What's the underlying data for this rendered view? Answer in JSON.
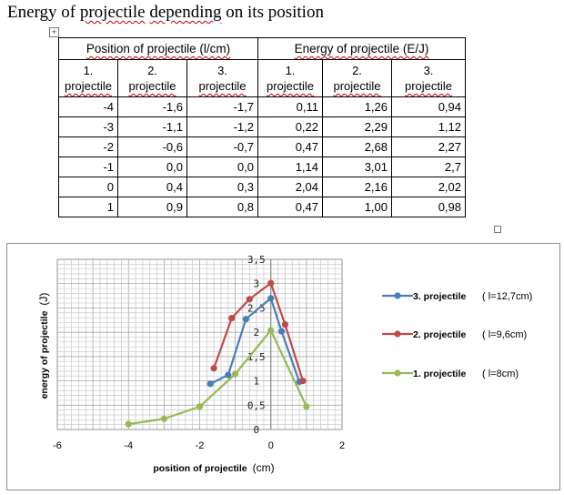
{
  "document": {
    "title_words": [
      "Energy",
      "of",
      "projectile",
      "depending",
      "on",
      "its",
      "position"
    ]
  },
  "table": {
    "group_headers": [
      "Position of projectile (l/cm)",
      "Energy of projectile (E/J)"
    ],
    "sub_headers": [
      {
        "num": "1.",
        "label": "projectile"
      },
      {
        "num": "2.",
        "label": "projectile"
      },
      {
        "num": "3.",
        "label": "projectile"
      },
      {
        "num": "1.",
        "label": "projectile"
      },
      {
        "num": "2.",
        "label": "projectile"
      },
      {
        "num": "3.",
        "label": "projectile"
      }
    ],
    "rows": [
      [
        "-4",
        "-1,6",
        "-1,7",
        "0,11",
        "1,26",
        "0,94"
      ],
      [
        "-3",
        "-1,1",
        "-1,2",
        "0,22",
        "2,29",
        "1,12"
      ],
      [
        "-2",
        "-0,6",
        "-0,7",
        "0,47",
        "2,68",
        "2,27"
      ],
      [
        "-1",
        "0,0",
        "0,0",
        "1,14",
        "3,01",
        "2,7"
      ],
      [
        "0",
        "0,4",
        "0,3",
        "2,04",
        "2,16",
        "2,02"
      ],
      [
        "1",
        "0,9",
        "0,8",
        "0,47",
        "1,00",
        "0,98"
      ]
    ]
  },
  "chart_data": {
    "type": "line",
    "xlabel": "position of projectile",
    "xlabel_unit": "(cm)",
    "ylabel": "energy of projectile",
    "ylabel_unit": "(J)",
    "xlim": [
      -6,
      2
    ],
    "ylim": [
      0,
      3.5
    ],
    "x_ticks": [
      "-6",
      "-4",
      "-2",
      "0",
      "2"
    ],
    "y_ticks": [
      "0",
      "0,5",
      "1",
      "1,5",
      "2",
      "2,5",
      "3",
      "3,5"
    ],
    "grid": true,
    "legend_position": "right",
    "series": [
      {
        "name": "3. projectile",
        "note": "( l=12,7cm)",
        "color": "#4a7ebb",
        "x": [
          -1.7,
          -1.2,
          -0.7,
          0.0,
          0.3,
          0.8
        ],
        "y": [
          0.94,
          1.12,
          2.27,
          2.7,
          2.02,
          0.98
        ]
      },
      {
        "name": "2. projectile",
        "note": "( l=9,6cm)",
        "color": "#be4b48",
        "x": [
          -1.6,
          -1.1,
          -0.6,
          0.0,
          0.4,
          0.9
        ],
        "y": [
          1.26,
          2.29,
          2.68,
          3.01,
          2.16,
          1.0
        ]
      },
      {
        "name": "1. projectile",
        "note": "( l=8cm)",
        "color": "#98b954",
        "x": [
          -4,
          -3,
          -2,
          -1,
          0,
          1
        ],
        "y": [
          0.11,
          0.22,
          0.47,
          1.14,
          2.04,
          0.47
        ]
      }
    ]
  }
}
